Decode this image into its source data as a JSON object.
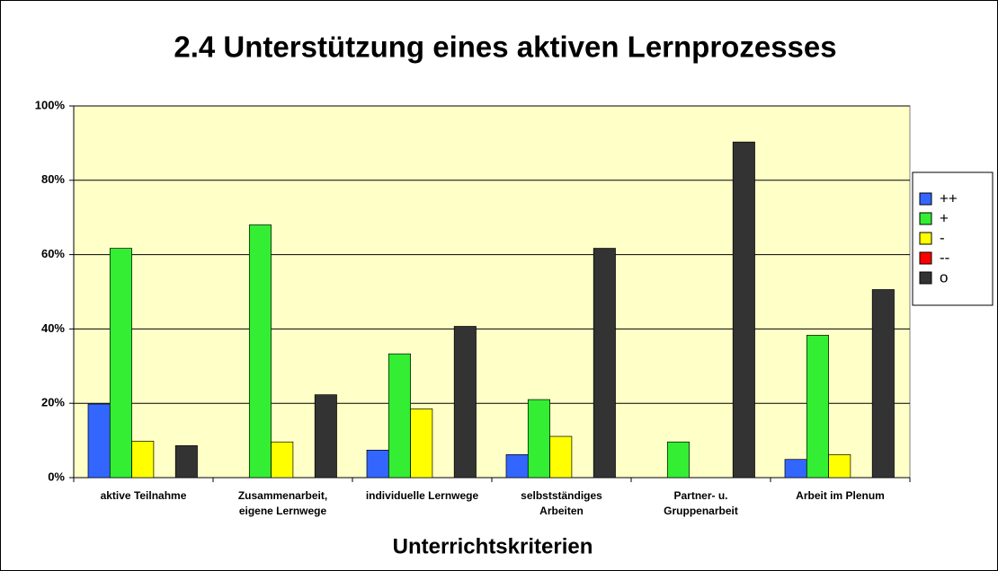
{
  "chart_data": {
    "type": "bar",
    "title": "2.4 Unterstützung eines aktiven Lernprozesses",
    "x_label": "Unterrichtskriterien",
    "categories": [
      "aktive Teilnahme",
      "Zusammenarbeit, eigene Lernwege",
      "individuelle Lernwege",
      "selbstständiges Arbeiten",
      "Partner- u. Gruppenarbeit",
      "Arbeit im Plenum"
    ],
    "series": [
      {
        "name": "++",
        "color": "#3366ff",
        "values": [
          19.8,
          0,
          7.4,
          6.2,
          0,
          4.9
        ]
      },
      {
        "name": "+",
        "color": "#33ee33",
        "values": [
          61.7,
          68,
          33.3,
          21,
          9.6,
          38.3
        ]
      },
      {
        "name": "-",
        "color": "#ffff00",
        "values": [
          9.8,
          9.6,
          18.5,
          11.1,
          0,
          6.2
        ]
      },
      {
        "name": "--",
        "color": "#ff0000",
        "values": [
          0,
          0,
          0,
          0,
          0,
          0
        ]
      },
      {
        "name": "o",
        "color": "#333333",
        "values": [
          8.6,
          22.3,
          40.7,
          61.7,
          90.3,
          50.6
        ]
      }
    ],
    "ylim": [
      0,
      100
    ],
    "yticks": [
      {
        "value": 0,
        "label": "0%"
      },
      {
        "value": 20,
        "label": "20%"
      },
      {
        "value": 40,
        "label": "40%"
      },
      {
        "value": 60,
        "label": "60%"
      },
      {
        "value": 80,
        "label": "80%"
      },
      {
        "value": 100,
        "label": "100%"
      }
    ],
    "grid": true,
    "legend": "right",
    "plot_background": "#ffffc8"
  }
}
